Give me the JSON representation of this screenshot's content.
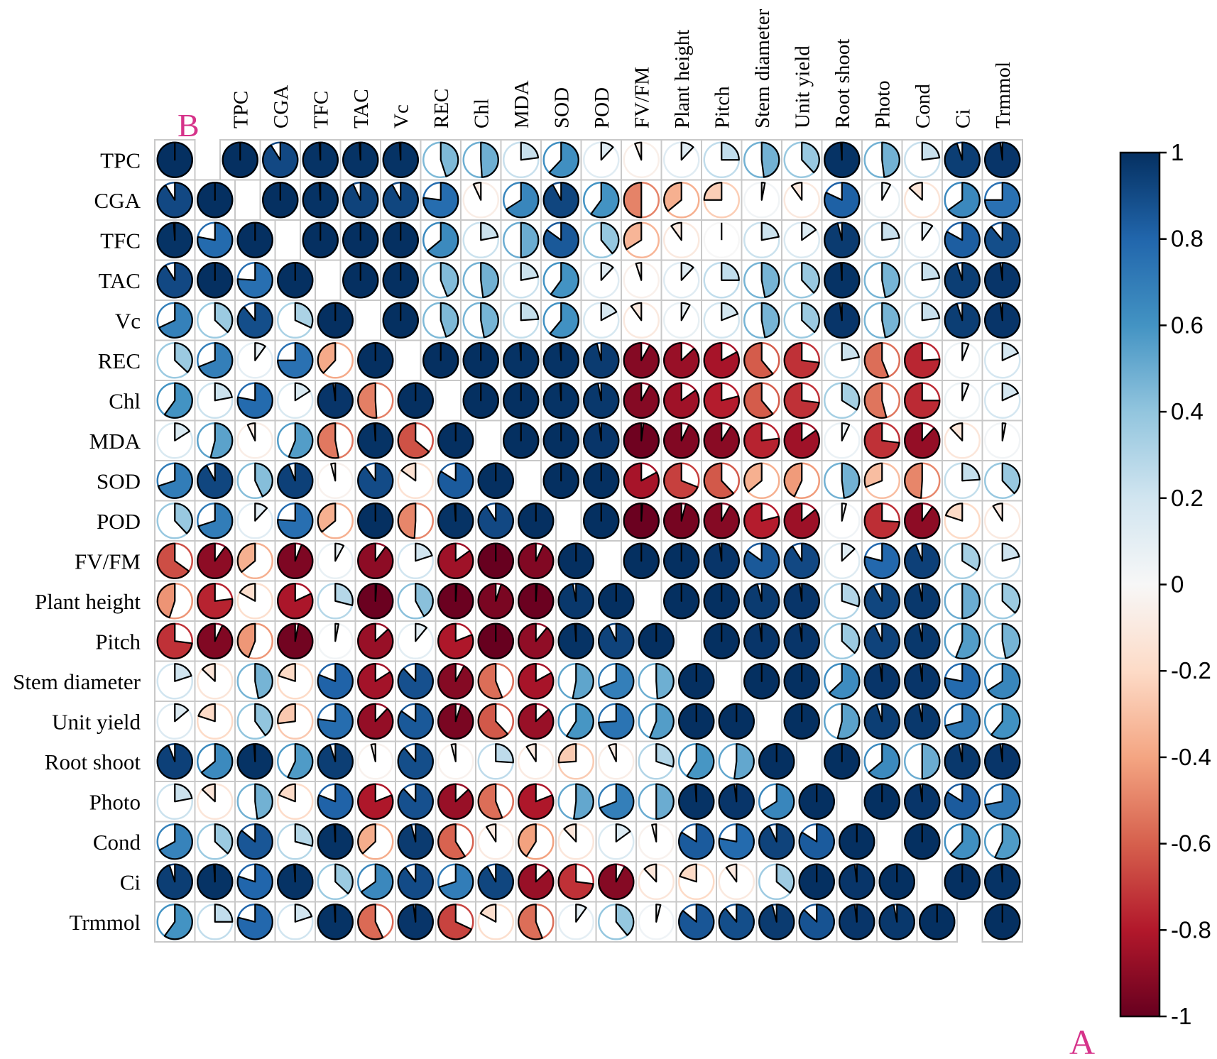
{
  "figure": {
    "label_upper": "B",
    "label_lower": "A"
  },
  "colors": {
    "grid_line": "#c8c8c8",
    "mark_outline": "#000000",
    "corner_label": "#d6338a",
    "scale": [
      {
        "v": -1.0,
        "c": "#67001f"
      },
      {
        "v": -0.8,
        "c": "#b2182b"
      },
      {
        "v": -0.6,
        "c": "#d6604d"
      },
      {
        "v": -0.4,
        "c": "#f4a582"
      },
      {
        "v": -0.2,
        "c": "#fddbc7"
      },
      {
        "v": 0.0,
        "c": "#f7f7f7"
      },
      {
        "v": 0.2,
        "c": "#d1e5f0"
      },
      {
        "v": 0.4,
        "c": "#92c5de"
      },
      {
        "v": 0.6,
        "c": "#4393c3"
      },
      {
        "v": 0.8,
        "c": "#2166ac"
      },
      {
        "v": 1.0,
        "c": "#053061"
      }
    ]
  },
  "chart_data": [
    {
      "type": "heatmap",
      "subtype": "correlation-pie",
      "panel": "A",
      "triangle": "upper (including diagonal)",
      "variables": [
        "TPC",
        "CGA",
        "TFC",
        "TAC",
        "Vc",
        "REC",
        "Chl",
        "MDA",
        "SOD",
        "POD",
        "FV/FM",
        "Plant height",
        "Pitch",
        "Stem diameter",
        "Unit yield",
        "Root shoot",
        "Photo",
        "Cond",
        "Ci",
        "Trmmol"
      ],
      "matrix": [
        [
          1.0,
          0.91,
          0.99,
          0.99,
          0.99,
          0.45,
          0.49,
          0.23,
          0.62,
          0.12,
          -0.06,
          0.12,
          0.25,
          0.48,
          0.38,
          0.99,
          0.48,
          0.23,
          0.95,
          0.98
        ],
        [
          0.91,
          1.0,
          0.99,
          0.93,
          0.92,
          0.77,
          -0.07,
          0.66,
          0.92,
          0.6,
          -0.5,
          -0.36,
          -0.25,
          0.03,
          -0.1,
          0.82,
          0.08,
          -0.13,
          0.65,
          0.75
        ],
        [
          0.99,
          0.78,
          1.0,
          1.0,
          1.0,
          0.64,
          0.22,
          0.5,
          0.85,
          0.39,
          -0.34,
          -0.1,
          0.0,
          0.22,
          0.15,
          0.96,
          0.23,
          0.1,
          0.83,
          0.89
        ],
        [
          0.91,
          1.0,
          0.76,
          1.0,
          1.0,
          0.44,
          0.48,
          0.22,
          0.6,
          0.12,
          -0.05,
          0.12,
          0.25,
          0.47,
          0.38,
          0.99,
          0.47,
          0.23,
          0.95,
          0.98
        ],
        [
          0.68,
          0.37,
          0.89,
          0.32,
          1.0,
          0.45,
          0.47,
          0.24,
          0.61,
          0.17,
          -0.1,
          0.08,
          0.19,
          0.47,
          0.37,
          0.98,
          0.47,
          0.23,
          0.95,
          0.98
        ],
        [
          0.37,
          0.69,
          0.1,
          0.75,
          -0.38,
          1.0,
          1.0,
          0.99,
          0.99,
          0.96,
          -0.92,
          -0.87,
          -0.83,
          -0.61,
          -0.73,
          0.22,
          -0.56,
          -0.76,
          0.06,
          0.18
        ],
        [
          0.6,
          0.22,
          0.78,
          0.16,
          0.98,
          -0.51,
          1.0,
          1.0,
          0.99,
          0.97,
          -0.92,
          -0.85,
          -0.79,
          -0.61,
          -0.73,
          0.34,
          -0.54,
          -0.75,
          0.06,
          0.18
        ],
        [
          0.16,
          0.54,
          -0.07,
          0.56,
          -0.53,
          0.99,
          -0.64,
          1.0,
          1.0,
          0.98,
          -0.98,
          -0.93,
          -0.91,
          -0.77,
          -0.85,
          0.07,
          -0.73,
          -0.88,
          -0.12,
          0.03
        ],
        [
          0.7,
          0.92,
          0.43,
          0.94,
          -0.04,
          0.9,
          -0.15,
          0.84,
          1.0,
          1.0,
          -0.83,
          -0.69,
          -0.62,
          -0.36,
          -0.43,
          0.48,
          -0.31,
          -0.49,
          0.24,
          0.38
        ],
        [
          0.38,
          0.7,
          0.12,
          0.76,
          -0.36,
          1.0,
          -0.49,
          0.99,
          0.91,
          1.0,
          -0.99,
          -0.96,
          -0.92,
          -0.79,
          -0.86,
          0.04,
          -0.74,
          -0.9,
          -0.2,
          -0.09
        ],
        [
          -0.65,
          -0.9,
          -0.36,
          -0.94,
          0.08,
          -0.9,
          0.2,
          -0.85,
          -1.0,
          -0.93,
          1.0,
          1.0,
          0.98,
          0.85,
          0.91,
          0.13,
          0.79,
          0.94,
          0.34,
          0.21
        ],
        [
          -0.45,
          -0.77,
          -0.17,
          -0.82,
          0.29,
          -0.99,
          0.42,
          -0.99,
          -0.95,
          -0.99,
          0.97,
          1.0,
          1.0,
          0.96,
          0.98,
          0.3,
          0.92,
          0.97,
          0.5,
          0.37
        ],
        [
          -0.73,
          -0.93,
          -0.44,
          -0.97,
          0.03,
          -0.87,
          0.11,
          -0.81,
          -1.0,
          -0.89,
          0.99,
          0.93,
          1.0,
          0.98,
          0.98,
          0.37,
          0.93,
          0.97,
          0.56,
          0.47
        ],
        [
          0.2,
          -0.13,
          0.47,
          -0.2,
          0.81,
          -0.84,
          0.88,
          -0.92,
          -0.56,
          -0.83,
          0.53,
          0.69,
          0.49,
          1.0,
          1.0,
          0.63,
          0.98,
          0.98,
          0.78,
          0.66
        ],
        [
          0.14,
          -0.2,
          0.4,
          -0.27,
          0.77,
          -0.88,
          0.85,
          -0.95,
          -0.62,
          -0.87,
          0.59,
          0.74,
          0.56,
          1.0,
          1.0,
          0.54,
          0.95,
          0.97,
          0.71,
          0.61
        ],
        [
          0.94,
          0.64,
          0.99,
          0.57,
          0.95,
          -0.04,
          0.89,
          -0.04,
          0.26,
          -0.09,
          -0.26,
          -0.07,
          0.3,
          0.59,
          0.52,
          1.0,
          0.64,
          0.5,
          0.97,
          0.98
        ],
        [
          0.22,
          -0.13,
          0.48,
          -0.19,
          0.81,
          -0.81,
          0.88,
          -0.87,
          -0.56,
          -0.81,
          0.52,
          0.69,
          0.5,
          0.99,
          0.98,
          0.66,
          1.0,
          0.98,
          0.84,
          0.72
        ],
        [
          0.67,
          0.37,
          0.86,
          0.29,
          0.99,
          -0.37,
          0.96,
          -0.59,
          -0.09,
          -0.41,
          -0.12,
          0.15,
          -0.04,
          0.84,
          0.78,
          0.93,
          0.84,
          1.0,
          0.62,
          0.57
        ],
        [
          0.95,
          0.99,
          0.8,
          0.99,
          0.37,
          0.65,
          0.9,
          0.7,
          0.92,
          -0.87,
          -0.73,
          -0.92,
          -0.12,
          -0.2,
          -0.1,
          0.36,
          1.0,
          0.98,
          1.0,
          0.99
        ],
        [
          0.6,
          0.25,
          0.79,
          0.2,
          0.99,
          -0.57,
          0.98,
          -0.68,
          -0.17,
          -0.56,
          0.1,
          0.39,
          0.04,
          0.86,
          0.89,
          0.96,
          0.87,
          0.98,
          0.97,
          1.0
        ]
      ]
    },
    {
      "type": "heatmap",
      "subtype": "correlation-pie",
      "panel": "B",
      "triangle": "lower (including diagonal)",
      "note": "Lower triangle of the same matrix"
    },
    {
      "type": "colorbar",
      "range": [
        -1,
        1
      ],
      "tick_labels": [
        "1",
        "0.8",
        "0.6",
        "0.4",
        "0.2",
        "0",
        "-0.2",
        "-0.4",
        "-0.6",
        "-0.8",
        "-1"
      ]
    }
  ]
}
